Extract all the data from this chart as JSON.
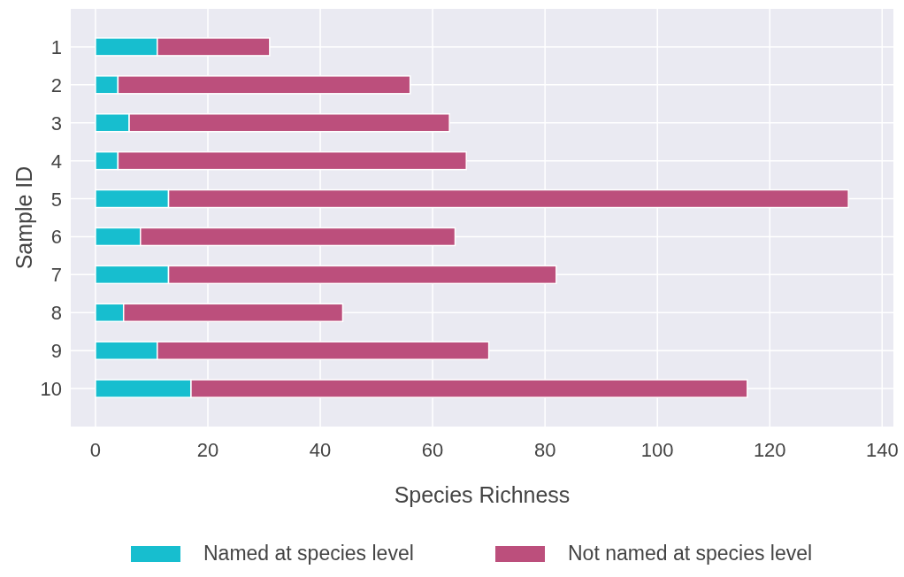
{
  "chart_data": {
    "type": "bar",
    "orientation": "horizontal",
    "stacked": true,
    "xlabel": "Species Richness",
    "ylabel": "Sample ID",
    "categories": [
      "1",
      "2",
      "3",
      "4",
      "5",
      "6",
      "7",
      "8",
      "9",
      "10"
    ],
    "series": [
      {
        "name": "Named at species level",
        "color": "#17becf",
        "values": [
          11,
          4,
          6,
          4,
          13,
          8,
          13,
          5,
          11,
          17
        ]
      },
      {
        "name": "Not named at species level",
        "color": "#bc4f7c",
        "values": [
          20,
          52,
          57,
          62,
          121,
          56,
          69,
          39,
          59,
          99
        ]
      }
    ],
    "xlim": [
      -4.4,
      142
    ],
    "xticks": [
      0,
      20,
      40,
      60,
      80,
      100,
      120,
      140
    ],
    "grid": true,
    "legend": "bottom"
  }
}
